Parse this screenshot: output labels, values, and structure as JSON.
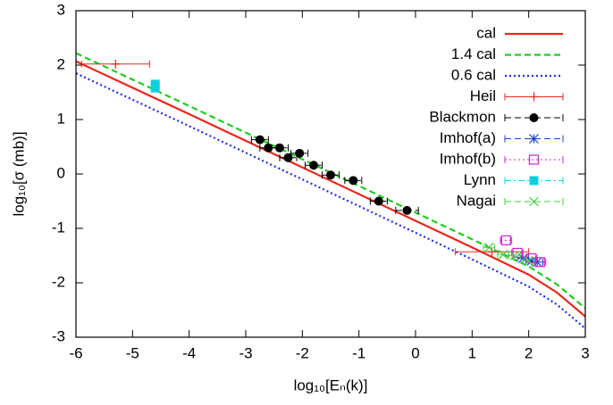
{
  "chart_data": {
    "type": "line",
    "xlabel": "log₁₀[Eₙ(k)]",
    "ylabel": "log₁₀[σ (mb)]",
    "xlim": [
      -6,
      3
    ],
    "ylim": [
      -3,
      3
    ],
    "xticks": [
      -6,
      -5,
      -4,
      -3,
      -2,
      -1,
      0,
      1,
      2,
      3
    ],
    "yticks": [
      -3,
      -2,
      -1,
      0,
      1,
      2,
      3
    ],
    "legend": "top-right",
    "series": [
      {
        "name": "cal",
        "color": "#e8281e",
        "dash": "solid",
        "marker": null,
        "x": [
          -6,
          -4,
          -2,
          0,
          1,
          2,
          2.5,
          3
        ],
        "values": [
          2.07,
          1.1,
          0.12,
          -0.86,
          -1.35,
          -1.85,
          -2.18,
          -2.62
        ]
      },
      {
        "name": "1.4 cal",
        "color": "#22cc22",
        "dash": "dashed",
        "marker": null,
        "x": [
          -6,
          -4,
          -2,
          0,
          1,
          2,
          2.5,
          3
        ],
        "values": [
          2.22,
          1.25,
          0.27,
          -0.71,
          -1.2,
          -1.7,
          -2.03,
          -2.47
        ]
      },
      {
        "name": "0.6 cal",
        "color": "#1c2fe0",
        "dash": "dotted",
        "marker": null,
        "x": [
          -6,
          -4,
          -2,
          0,
          1,
          2,
          2.5,
          3
        ],
        "values": [
          1.85,
          0.88,
          -0.1,
          -1.08,
          -1.57,
          -2.07,
          -2.4,
          -2.84
        ]
      },
      {
        "name": "Heil",
        "color": "#e8281e",
        "dash": "solid",
        "marker": "plus",
        "x": [
          -5.3,
          1.35
        ],
        "values": [
          2.02,
          -1.43
        ],
        "xerr": [
          0.6,
          0.65
        ]
      },
      {
        "name": "Blackmon",
        "color": "#000000",
        "dash": "dashed",
        "marker": "circle",
        "x": [
          -2.75,
          -2.6,
          -2.4,
          -2.25,
          -2.05,
          -1.8,
          -1.5,
          -1.1,
          -0.65,
          -0.15
        ],
        "values": [
          0.63,
          0.48,
          0.48,
          0.3,
          0.38,
          0.16,
          -0.02,
          -0.12,
          -0.5,
          -0.67
        ],
        "xerr": [
          0.15,
          0.15,
          0.15,
          0.15,
          0.15,
          0.15,
          0.15,
          0.15,
          0.15,
          0.2
        ]
      },
      {
        "name": "Imhof(a)",
        "color": "#2040d8",
        "dash": "dashed",
        "marker": "star",
        "x": [
          1.9,
          2.05,
          2.15
        ],
        "values": [
          -1.55,
          -1.6,
          -1.62
        ],
        "xerr": [
          0.1,
          0.1,
          0.1
        ]
      },
      {
        "name": "Imhof(b)",
        "color": "#d020d0",
        "dash": "dotted",
        "marker": "open-square",
        "x": [
          1.6,
          1.8,
          2.05,
          2.2
        ],
        "values": [
          -1.22,
          -1.45,
          -1.55,
          -1.62
        ],
        "xerr": [
          0.1,
          0.1,
          0.1,
          0.1
        ]
      },
      {
        "name": "Lynn",
        "color": "#10d0e0",
        "dash": "dashdot",
        "marker": "filled-square",
        "x": [
          -4.6,
          -4.6
        ],
        "values": [
          1.65,
          1.58
        ],
        "xerr": [
          0.05,
          0.05
        ]
      },
      {
        "name": "Nagai",
        "color": "#40d040",
        "dash": "dashed",
        "marker": "x",
        "x": [
          1.3,
          1.55,
          1.75,
          2.0
        ],
        "values": [
          -1.35,
          -1.48,
          -1.5,
          -1.6
        ],
        "xerr": [
          0.1,
          0.1,
          0.1,
          0.1
        ]
      }
    ]
  }
}
